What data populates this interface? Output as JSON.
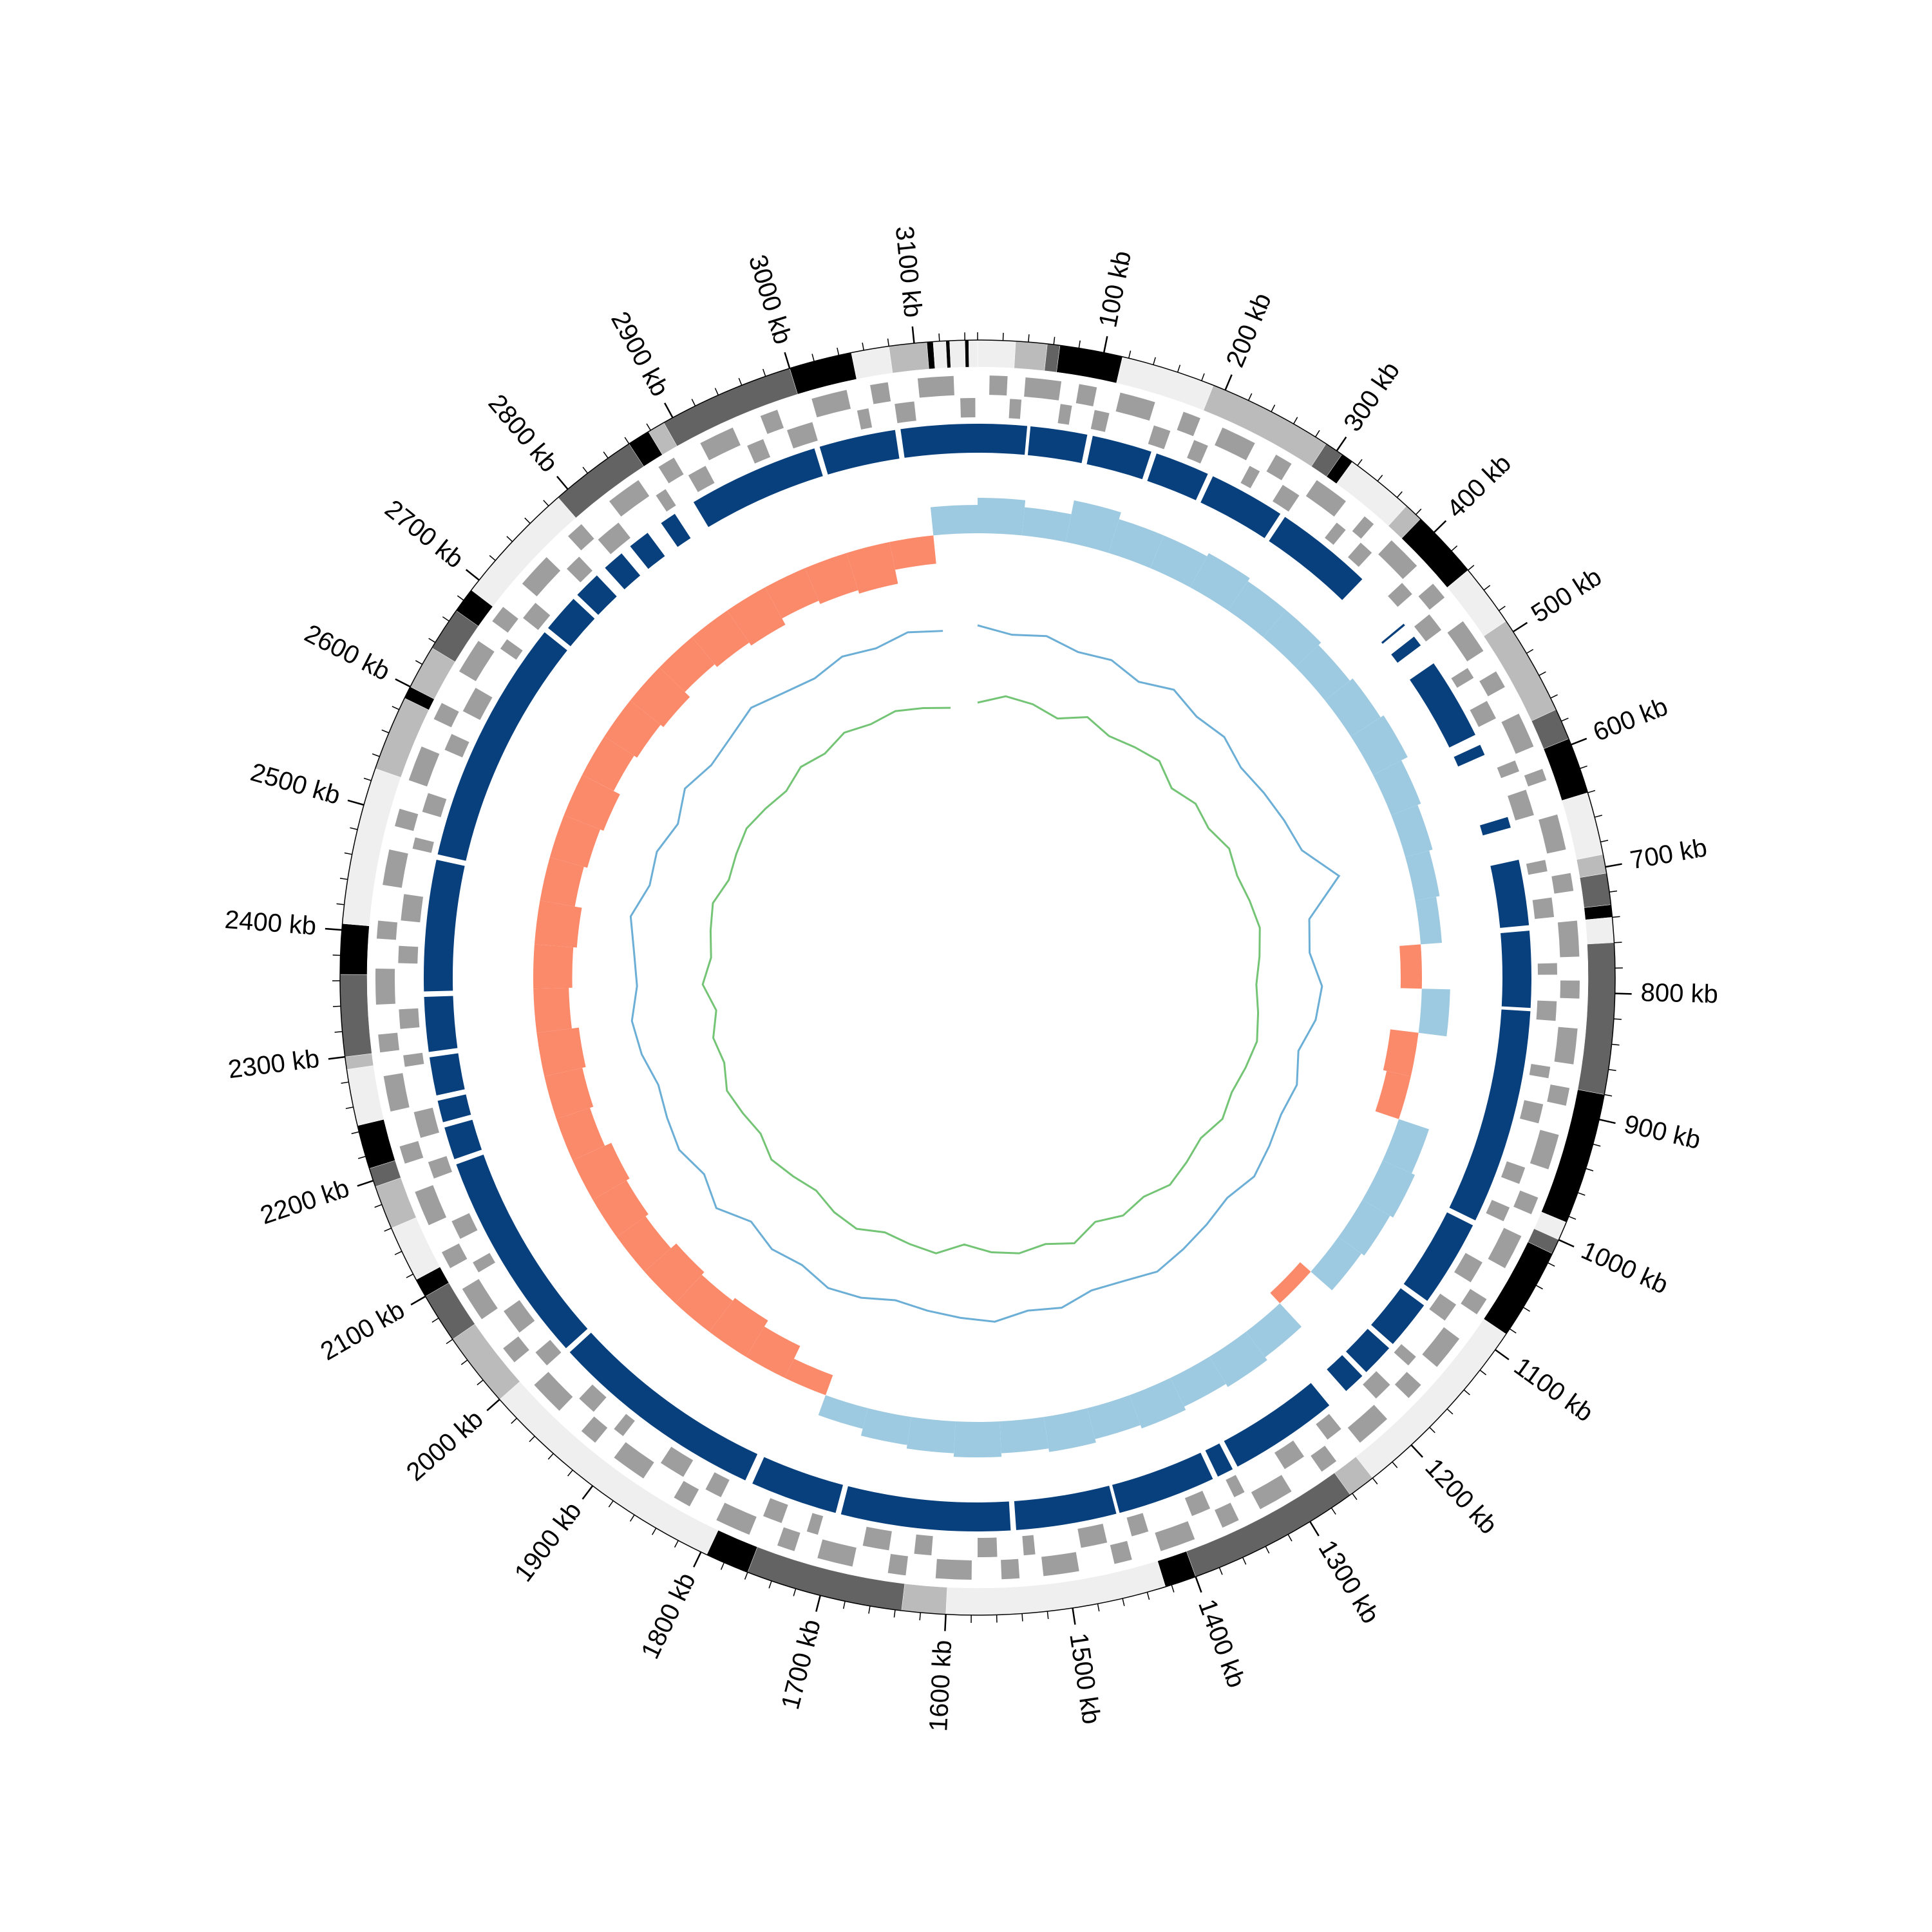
{
  "chart_data": {
    "type": "circos",
    "xlim": [
      0,
      3150
    ],
    "xticks": [
      {
        "value": 100,
        "label": "100 kb"
      },
      {
        "value": 200,
        "label": "200 kb"
      },
      {
        "value": 300,
        "label": "300 kb"
      },
      {
        "value": 400,
        "label": "400 kb"
      },
      {
        "value": 500,
        "label": "500 kb"
      },
      {
        "value": 600,
        "label": "600 kb"
      },
      {
        "value": 700,
        "label": "700 kb"
      },
      {
        "value": 800,
        "label": "800 kb"
      },
      {
        "value": 900,
        "label": "900 kb"
      },
      {
        "value": 1000,
        "label": "1000 kb"
      },
      {
        "value": 1100,
        "label": "1100 kb"
      },
      {
        "value": 1200,
        "label": "1200 kb"
      },
      {
        "value": 1300,
        "label": "1300 kb"
      },
      {
        "value": 1400,
        "label": "1400 kb"
      },
      {
        "value": 1500,
        "label": "1500 kb"
      },
      {
        "value": 1600,
        "label": "1600 kb"
      },
      {
        "value": 1700,
        "label": "1700 kb"
      },
      {
        "value": 1800,
        "label": "1800 kb"
      },
      {
        "value": 1900,
        "label": "1900 kb"
      },
      {
        "value": 2000,
        "label": "2000 kb"
      },
      {
        "value": 2100,
        "label": "2100 kb"
      },
      {
        "value": 2200,
        "label": "2200 kb"
      },
      {
        "value": 2300,
        "label": "2300 kb"
      },
      {
        "value": 2400,
        "label": "2400 kb"
      },
      {
        "value": 2500,
        "label": "2500 kb"
      },
      {
        "value": 2600,
        "label": "2600 kb"
      },
      {
        "value": 2700,
        "label": "2700 kb"
      },
      {
        "value": 2800,
        "label": "2800 kb"
      },
      {
        "value": 2900,
        "label": "2900 kb"
      },
      {
        "value": 3000,
        "label": "3000 kb"
      },
      {
        "value": 3100,
        "label": "3100 kb"
      }
    ],
    "minor_tick_interval": 20,
    "bands": [
      {
        "start": 0,
        "end": 30,
        "color": "#efefef"
      },
      {
        "start": 30,
        "end": 55,
        "color": "#bbbbbb"
      },
      {
        "start": 55,
        "end": 65,
        "color": "#636363"
      },
      {
        "start": 65,
        "end": 115,
        "color": "#000000"
      },
      {
        "start": 115,
        "end": 190,
        "color": "#efefef"
      },
      {
        "start": 190,
        "end": 290,
        "color": "#bbbbbb"
      },
      {
        "start": 290,
        "end": 305,
        "color": "#636363"
      },
      {
        "start": 305,
        "end": 315,
        "color": "#000000"
      },
      {
        "start": 315,
        "end": 370,
        "color": "#efefef"
      },
      {
        "start": 370,
        "end": 385,
        "color": "#bbbbbb"
      },
      {
        "start": 385,
        "end": 440,
        "color": "#000000"
      },
      {
        "start": 440,
        "end": 490,
        "color": "#efefef"
      },
      {
        "start": 490,
        "end": 570,
        "color": "#bbbbbb"
      },
      {
        "start": 570,
        "end": 595,
        "color": "#636363"
      },
      {
        "start": 595,
        "end": 640,
        "color": "#000000"
      },
      {
        "start": 640,
        "end": 690,
        "color": "#efefef"
      },
      {
        "start": 690,
        "end": 705,
        "color": "#bbbbbb"
      },
      {
        "start": 705,
        "end": 730,
        "color": "#636363"
      },
      {
        "start": 730,
        "end": 740,
        "color": "#000000"
      },
      {
        "start": 740,
        "end": 760,
        "color": "#efefef"
      },
      {
        "start": 760,
        "end": 880,
        "color": "#636363"
      },
      {
        "start": 880,
        "end": 985,
        "color": "#000000"
      },
      {
        "start": 985,
        "end": 1000,
        "color": "#efefef"
      },
      {
        "start": 1000,
        "end": 1012,
        "color": "#636363"
      },
      {
        "start": 1012,
        "end": 1085,
        "color": "#000000"
      },
      {
        "start": 1085,
        "end": 1240,
        "color": "#efefef"
      },
      {
        "start": 1240,
        "end": 1262,
        "color": "#bbbbbb"
      },
      {
        "start": 1262,
        "end": 1400,
        "color": "#636363"
      },
      {
        "start": 1400,
        "end": 1425,
        "color": "#000000"
      },
      {
        "start": 1425,
        "end": 1600,
        "color": "#efefef"
      },
      {
        "start": 1600,
        "end": 1635,
        "color": "#bbbbbb"
      },
      {
        "start": 1635,
        "end": 1760,
        "color": "#636363"
      },
      {
        "start": 1760,
        "end": 1795,
        "color": "#000000"
      },
      {
        "start": 1795,
        "end": 2000,
        "color": "#efefef"
      },
      {
        "start": 2000,
        "end": 2060,
        "color": "#bbbbbb"
      },
      {
        "start": 2060,
        "end": 2100,
        "color": "#636363"
      },
      {
        "start": 2100,
        "end": 2115,
        "color": "#000000"
      },
      {
        "start": 2115,
        "end": 2160,
        "color": "#efefef"
      },
      {
        "start": 2160,
        "end": 2195,
        "color": "#bbbbbb"
      },
      {
        "start": 2195,
        "end": 2210,
        "color": "#636363"
      },
      {
        "start": 2210,
        "end": 2245,
        "color": "#000000"
      },
      {
        "start": 2245,
        "end": 2290,
        "color": "#efefef"
      },
      {
        "start": 2290,
        "end": 2300,
        "color": "#bbbbbb"
      },
      {
        "start": 2300,
        "end": 2365,
        "color": "#636363"
      },
      {
        "start": 2365,
        "end": 2405,
        "color": "#000000"
      },
      {
        "start": 2405,
        "end": 2530,
        "color": "#efefef"
      },
      {
        "start": 2530,
        "end": 2590,
        "color": "#bbbbbb"
      },
      {
        "start": 2590,
        "end": 2600,
        "color": "#000000"
      },
      {
        "start": 2600,
        "end": 2635,
        "color": "#bbbbbb"
      },
      {
        "start": 2635,
        "end": 2670,
        "color": "#636363"
      },
      {
        "start": 2670,
        "end": 2690,
        "color": "#000000"
      },
      {
        "start": 2690,
        "end": 2790,
        "color": "#efefef"
      },
      {
        "start": 2790,
        "end": 2860,
        "color": "#636363"
      },
      {
        "start": 2860,
        "end": 2878,
        "color": "#000000"
      },
      {
        "start": 2878,
        "end": 2892,
        "color": "#bbbbbb"
      },
      {
        "start": 2892,
        "end": 3000,
        "color": "#636363"
      },
      {
        "start": 3000,
        "end": 3050,
        "color": "#000000"
      },
      {
        "start": 3050,
        "end": 3080,
        "color": "#efefef"
      },
      {
        "start": 3080,
        "end": 3110,
        "color": "#bbbbbb"
      },
      {
        "start": 3110,
        "end": 3115,
        "color": "#000000"
      },
      {
        "start": 3115,
        "end": 3125,
        "color": "#efefef"
      },
      {
        "start": 3125,
        "end": 3128,
        "color": "#000000"
      },
      {
        "start": 3128,
        "end": 3140,
        "color": "#efefef"
      },
      {
        "start": 3140,
        "end": 3143,
        "color": "#000000"
      },
      {
        "start": 3143,
        "end": 3150,
        "color": "#efefef"
      }
    ],
    "gene_color": "#9e9e9e",
    "genes_forward": [
      [
        10,
        25
      ],
      [
        40,
        70
      ],
      [
        85,
        100
      ],
      [
        120,
        150
      ],
      [
        175,
        190
      ],
      [
        210,
        240
      ],
      [
        260,
        275
      ],
      [
        300,
        330
      ],
      [
        350,
        360
      ],
      [
        380,
        410
      ],
      [
        430,
        445
      ],
      [
        470,
        500
      ],
      [
        520,
        535
      ],
      [
        560,
        590
      ],
      [
        610,
        620
      ],
      [
        650,
        680
      ],
      [
        700,
        715
      ],
      [
        740,
        770
      ],
      [
        790,
        805
      ],
      [
        830,
        860
      ],
      [
        880,
        895
      ],
      [
        920,
        950
      ],
      [
        975,
        990
      ],
      [
        1010,
        1040
      ],
      [
        1070,
        1085
      ],
      [
        1110,
        1140
      ],
      [
        1160,
        1175
      ],
      [
        1200,
        1230
      ],
      [
        1255,
        1270
      ],
      [
        1300,
        1330
      ],
      [
        1350,
        1365
      ],
      [
        1390,
        1420
      ],
      [
        1445,
        1460
      ],
      [
        1490,
        1520
      ],
      [
        1540,
        1555
      ],
      [
        1580,
        1610
      ],
      [
        1635,
        1650
      ],
      [
        1680,
        1710
      ],
      [
        1730,
        1745
      ],
      [
        1770,
        1800
      ],
      [
        1825,
        1840
      ],
      [
        1870,
        1900
      ],
      [
        1920,
        1935
      ],
      [
        1960,
        1990
      ],
      [
        2015,
        2030
      ],
      [
        2060,
        2090
      ],
      [
        2110,
        2125
      ],
      [
        2150,
        2180
      ],
      [
        2205,
        2220
      ],
      [
        2250,
        2280
      ],
      [
        2300,
        2315
      ],
      [
        2340,
        2370
      ],
      [
        2395,
        2410
      ],
      [
        2440,
        2470
      ],
      [
        2490,
        2505
      ],
      [
        2530,
        2560
      ],
      [
        2585,
        2600
      ],
      [
        2630,
        2660
      ],
      [
        2680,
        2695
      ],
      [
        2720,
        2750
      ],
      [
        2775,
        2790
      ],
      [
        2820,
        2850
      ],
      [
        2870,
        2885
      ],
      [
        2910,
        2940
      ],
      [
        2965,
        2980
      ],
      [
        3010,
        3040
      ],
      [
        3060,
        3075
      ],
      [
        3100,
        3130
      ]
    ],
    "genes_reverse": [
      [
        28,
        38
      ],
      [
        72,
        82
      ],
      [
        102,
        115
      ],
      [
        155,
        170
      ],
      [
        192,
        205
      ],
      [
        245,
        255
      ],
      [
        278,
        295
      ],
      [
        335,
        345
      ],
      [
        362,
        375
      ],
      [
        412,
        425
      ],
      [
        448,
        465
      ],
      [
        505,
        515
      ],
      [
        538,
        555
      ],
      [
        595,
        605
      ],
      [
        622,
        645
      ],
      [
        685,
        695
      ],
      [
        718,
        735
      ],
      [
        775,
        785
      ],
      [
        808,
        825
      ],
      [
        865,
        875
      ],
      [
        898,
        915
      ],
      [
        955,
        970
      ],
      [
        992,
        1005
      ],
      [
        1045,
        1065
      ],
      [
        1088,
        1105
      ],
      [
        1145,
        1155
      ],
      [
        1178,
        1195
      ],
      [
        1235,
        1250
      ],
      [
        1275,
        1295
      ],
      [
        1335,
        1345
      ],
      [
        1368,
        1385
      ],
      [
        1425,
        1440
      ],
      [
        1462,
        1485
      ],
      [
        1525,
        1535
      ],
      [
        1558,
        1575
      ],
      [
        1615,
        1630
      ],
      [
        1652,
        1675
      ],
      [
        1715,
        1725
      ],
      [
        1748,
        1765
      ],
      [
        1805,
        1820
      ],
      [
        1842,
        1865
      ],
      [
        1905,
        1915
      ],
      [
        1938,
        1955
      ],
      [
        1995,
        2010
      ],
      [
        2032,
        2055
      ],
      [
        2095,
        2105
      ],
      [
        2128,
        2145
      ],
      [
        2185,
        2200
      ],
      [
        2222,
        2245
      ],
      [
        2285,
        2295
      ],
      [
        2318,
        2335
      ],
      [
        2375,
        2390
      ],
      [
        2412,
        2435
      ],
      [
        2475,
        2485
      ],
      [
        2508,
        2525
      ],
      [
        2565,
        2580
      ],
      [
        2602,
        2625
      ],
      [
        2665,
        2675
      ],
      [
        2698,
        2715
      ],
      [
        2755,
        2770
      ],
      [
        2792,
        2815
      ],
      [
        2855,
        2865
      ],
      [
        2888,
        2905
      ],
      [
        2945,
        2960
      ],
      [
        2982,
        3005
      ],
      [
        3045,
        3055
      ],
      [
        3078,
        3095
      ],
      [
        3135,
        3148
      ]
    ],
    "block_color": "#08407e",
    "blocks": [
      [
        0,
        45
      ],
      [
        48,
        100
      ],
      [
        105,
        160
      ],
      [
        165,
        215
      ],
      [
        220,
        290
      ],
      [
        295,
        385
      ],
      [
        440,
        442
      ],
      [
        455,
        465
      ],
      [
        485,
        560
      ],
      [
        570,
        580
      ],
      [
        640,
        650
      ],
      [
        680,
        740
      ],
      [
        745,
        815
      ],
      [
        818,
        1015
      ],
      [
        1020,
        1100
      ],
      [
        1105,
        1150
      ],
      [
        1155,
        1185
      ],
      [
        1190,
        1210
      ],
      [
        1230,
        1330
      ],
      [
        1335,
        1350
      ],
      [
        1355,
        1445
      ],
      [
        1448,
        1540
      ],
      [
        1545,
        1700
      ],
      [
        1705,
        1785
      ],
      [
        1792,
        1990
      ],
      [
        1995,
        2190
      ],
      [
        2195,
        2225
      ],
      [
        2230,
        2250
      ],
      [
        2255,
        2290
      ],
      [
        2295,
        2345
      ],
      [
        2350,
        2470
      ],
      [
        2475,
        2700
      ],
      [
        2705,
        2740
      ],
      [
        2745,
        2770
      ],
      [
        2780,
        2800
      ],
      [
        2810,
        2830
      ],
      [
        2845,
        2860
      ],
      [
        2880,
        3000
      ],
      [
        3005,
        3075
      ],
      [
        3080,
        3150
      ]
    ],
    "x": [
      0,
      50,
      100,
      150,
      200,
      250,
      300,
      350,
      400,
      450,
      500,
      550,
      600,
      650,
      700,
      750,
      800,
      850,
      900,
      950,
      1000,
      1050,
      1100,
      1150,
      1200,
      1250,
      1300,
      1350,
      1400,
      1450,
      1500,
      1550,
      1600,
      1650,
      1700,
      1750,
      1800,
      1850,
      1900,
      1950,
      2000,
      2050,
      2100,
      2150,
      2200,
      2250,
      2300,
      2350,
      2400,
      2450,
      2500,
      2550,
      2600,
      2650,
      2700,
      2750,
      2800,
      2850,
      2900,
      2950,
      3000,
      3050,
      3100
    ],
    "skew": {
      "color_positive": "#9ecae1",
      "color_negative": "#fb8a6a",
      "values": [
        0.5,
        0.4,
        0.6,
        0.5,
        0.5,
        0.55,
        0.5,
        0.5,
        0.45,
        0.5,
        0.55,
        0.45,
        0.4,
        0.35,
        0.3,
        -0.3,
        0.4,
        -0.4,
        -0.35,
        0.45,
        0.5,
        0.45,
        0.4,
        -0.2,
        0.45,
        0.5,
        0.45,
        0.5,
        0.45,
        0.5,
        0.45,
        0.5,
        0.45,
        0.4,
        0.3,
        -0.3,
        -0.5,
        -0.6,
        -0.55,
        -0.6,
        -0.5,
        -0.55,
        -0.6,
        -0.5,
        -0.55,
        -0.6,
        -0.5,
        -0.55,
        -0.6,
        -0.5,
        -0.55,
        -0.6,
        -0.5,
        -0.55,
        -0.6,
        -0.5,
        -0.55,
        -0.6,
        -0.5,
        -0.55,
        -0.6,
        -0.4,
        0.4
      ]
    },
    "series": [
      {
        "color": "#6baed6",
        "values": [
          0.6,
          0.5,
          0.55,
          0.45,
          0.5,
          0.4,
          0.55,
          0.45,
          0.5,
          0.4,
          0.45,
          0.5,
          0.55,
          0.9,
          0.4,
          0.35,
          0.5,
          0.45,
          0.3,
          0.4,
          0.35,
          0.4,
          0.45,
          0.35,
          0.4,
          0.45,
          0.5,
          0.4,
          0.35,
          0.45,
          0.4,
          0.5,
          0.45,
          0.4,
          0.35,
          0.45,
          0.5,
          0.4,
          0.45,
          0.35,
          0.55,
          0.4,
          0.5,
          0.45,
          0.4,
          0.5,
          0.55,
          0.45,
          0.5,
          0.6,
          0.45,
          0.5,
          0.4,
          0.55,
          0.45,
          0.5,
          0.6,
          0.5,
          0.45,
          0.55,
          0.5,
          0.6,
          0.55
        ]
      },
      {
        "color": "#74c476",
        "values": [
          -0.4,
          -0.3,
          -0.35,
          -0.45,
          -0.3,
          -0.4,
          -0.35,
          -0.3,
          -0.45,
          -0.35,
          -0.4,
          -0.3,
          -0.35,
          -0.3,
          -0.25,
          -0.3,
          -0.35,
          -0.3,
          -0.25,
          -0.3,
          -0.35,
          -0.3,
          -0.4,
          -0.35,
          -0.3,
          -0.4,
          -0.35,
          -0.45,
          -0.3,
          -0.4,
          -0.35,
          -0.4,
          -0.5,
          -0.35,
          -0.4,
          -0.45,
          -0.35,
          -0.4,
          -0.5,
          -0.45,
          -0.4,
          -0.5,
          -0.45,
          -0.4,
          -0.5,
          -0.45,
          -0.55,
          -0.4,
          -0.5,
          -0.45,
          -0.4,
          -0.5,
          -0.45,
          -0.4,
          -0.45,
          -0.5,
          -0.4,
          -0.45,
          -0.35,
          -0.4,
          -0.35,
          -0.4,
          -0.45
        ]
      }
    ]
  }
}
